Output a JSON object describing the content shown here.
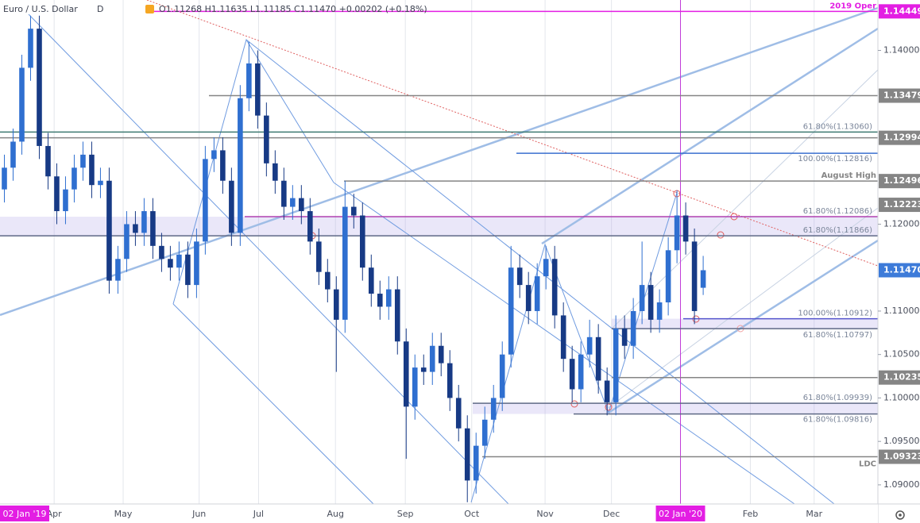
{
  "chart_data": {
    "type": "candlestick",
    "title": "Euro / U.S. Dollar",
    "interval": "D",
    "legend_ohlc": "O1.11268 H1.11635 L1.11185 C1.11470 +0.00202 (+0.18%)",
    "up_color": "#2f6fd0",
    "down_color": "#173a85",
    "open": [
      1.124,
      1.1265,
      1.1295,
      1.138,
      1.1425,
      1.129,
      1.1255,
      1.1215,
      1.124,
      1.1265,
      1.128,
      1.1245,
      1.125,
      1.1135,
      1.116,
      1.12,
      1.119,
      1.1215,
      1.1175,
      1.116,
      1.115,
      1.1165,
      1.113,
      1.118,
      1.1275,
      1.1285,
      1.125,
      1.119,
      1.1345,
      1.1385,
      1.1325,
      1.127,
      1.125,
      1.122,
      1.123,
      1.1215,
      1.118,
      1.1145,
      1.1125,
      1.109,
      1.122,
      1.121,
      1.115,
      1.112,
      1.1105,
      1.1125,
      1.1065,
      1.099,
      1.1035,
      1.103,
      1.106,
      1.104,
      1.1,
      1.0965,
      1.0905,
      1.0945,
      1.0975,
      1.1,
      1.105,
      1.115,
      1.113,
      1.11,
      1.114,
      1.116,
      1.1095,
      1.1045,
      1.101,
      1.105,
      1.107,
      1.102,
      1.0995,
      1.108,
      1.106,
      1.11,
      1.113,
      1.109,
      1.111,
      1.117,
      1.121,
      1.118,
      1.11268
    ],
    "high": [
      1.128,
      1.131,
      1.1395,
      1.144,
      1.144,
      1.1305,
      1.127,
      1.1255,
      1.128,
      1.1295,
      1.1295,
      1.1265,
      1.1265,
      1.1175,
      1.1215,
      1.1215,
      1.123,
      1.123,
      1.119,
      1.1175,
      1.118,
      1.118,
      1.1195,
      1.129,
      1.13,
      1.13,
      1.1265,
      1.136,
      1.141,
      1.14,
      1.134,
      1.1285,
      1.1265,
      1.1245,
      1.1245,
      1.123,
      1.1195,
      1.116,
      1.114,
      1.125,
      1.1235,
      1.1225,
      1.1165,
      1.1135,
      1.114,
      1.114,
      1.108,
      1.105,
      1.105,
      1.1075,
      1.1075,
      1.1055,
      1.1015,
      1.098,
      1.096,
      1.099,
      1.1015,
      1.1065,
      1.1175,
      1.1165,
      1.1145,
      1.1155,
      1.1175,
      1.1175,
      1.111,
      1.106,
      1.1065,
      1.109,
      1.1085,
      1.1035,
      1.1095,
      1.1095,
      1.1115,
      1.118,
      1.1145,
      1.1125,
      1.1185,
      1.1239,
      1.1225,
      1.1195,
      1.11635
    ],
    "low": [
      1.1225,
      1.125,
      1.128,
      1.1365,
      1.1275,
      1.124,
      1.12,
      1.12,
      1.1225,
      1.125,
      1.123,
      1.123,
      1.112,
      1.112,
      1.1145,
      1.1175,
      1.1175,
      1.116,
      1.1145,
      1.1135,
      1.1135,
      1.1115,
      1.1115,
      1.1165,
      1.126,
      1.1235,
      1.1175,
      1.1175,
      1.133,
      1.131,
      1.1255,
      1.1235,
      1.1205,
      1.1205,
      1.12,
      1.1165,
      1.113,
      1.111,
      1.103,
      1.1075,
      1.1195,
      1.1135,
      1.1105,
      1.109,
      1.109,
      1.105,
      1.093,
      1.0975,
      1.1015,
      1.1015,
      1.1025,
      1.0985,
      1.095,
      1.088,
      1.089,
      1.093,
      1.096,
      1.0985,
      1.1035,
      1.1115,
      1.1085,
      1.1085,
      1.1125,
      1.108,
      1.103,
      1.0995,
      1.0995,
      1.1035,
      1.1005,
      1.098,
      1.098,
      1.1045,
      1.1045,
      1.1085,
      1.1075,
      1.1075,
      1.1095,
      1.1155,
      1.1165,
      1.1085,
      1.11185
    ],
    "close": [
      1.1265,
      1.1295,
      1.138,
      1.1425,
      1.129,
      1.1255,
      1.1215,
      1.124,
      1.1265,
      1.128,
      1.1245,
      1.125,
      1.1135,
      1.116,
      1.12,
      1.119,
      1.1215,
      1.1175,
      1.116,
      1.115,
      1.1165,
      1.113,
      1.118,
      1.1275,
      1.1285,
      1.125,
      1.119,
      1.1345,
      1.1385,
      1.1325,
      1.127,
      1.125,
      1.122,
      1.123,
      1.1215,
      1.118,
      1.1145,
      1.1125,
      1.109,
      1.122,
      1.121,
      1.115,
      1.112,
      1.1105,
      1.1125,
      1.1065,
      1.099,
      1.1035,
      1.103,
      1.106,
      1.104,
      1.1,
      1.0965,
      1.0905,
      1.0945,
      1.0975,
      1.1,
      1.105,
      1.115,
      1.113,
      1.11,
      1.114,
      1.116,
      1.1095,
      1.1045,
      1.101,
      1.105,
      1.107,
      1.102,
      1.0995,
      1.108,
      1.106,
      1.11,
      1.113,
      1.109,
      1.111,
      1.117,
      1.121,
      1.118,
      1.11,
      1.1147
    ],
    "xlim": [
      -0.5,
      100
    ],
    "ylim": [
      1.0878,
      1.1458
    ],
    "xticks": [
      {
        "value": 5.7,
        "label": "Apr"
      },
      {
        "value": 13.6,
        "label": "May"
      },
      {
        "value": 22.3,
        "label": "Jun"
      },
      {
        "value": 29.1,
        "label": "Jul"
      },
      {
        "value": 37.9,
        "label": "Aug"
      },
      {
        "value": 45.9,
        "label": "Sep"
      },
      {
        "value": 53.5,
        "label": "Oct"
      },
      {
        "value": 61.9,
        "label": "Nov"
      },
      {
        "value": 69.5,
        "label": "Dec"
      },
      {
        "value": 85.4,
        "label": "Feb"
      },
      {
        "value": 92.7,
        "label": "Mar"
      }
    ],
    "highlight_dates": [
      {
        "value": 2.2,
        "label": "02 Jan '19"
      },
      {
        "value": 77.4,
        "label": "02 Jan '20"
      }
    ],
    "yticks": [
      {
        "value": 1.14,
        "label": "1.14000"
      },
      {
        "value": 1.12,
        "label": "1.12000"
      },
      {
        "value": 1.11,
        "label": "1.11000"
      },
      {
        "value": 1.105,
        "label": "1.10500"
      },
      {
        "value": 1.1,
        "label": "1.10000"
      },
      {
        "value": 1.095,
        "label": "1.09500"
      },
      {
        "value": 1.09,
        "label": "1.09000"
      }
    ],
    "grid": true,
    "price_labels": [
      {
        "value": 1.14449,
        "label": "1.14449",
        "color": "#e31ee3"
      },
      {
        "value": 1.13479,
        "label": "1.13479",
        "color": "#858585"
      },
      {
        "value": 1.12994,
        "label": "1.12994",
        "color": "#858585"
      },
      {
        "value": 1.12496,
        "label": "1.12496",
        "color": "#858585"
      },
      {
        "value": 1.12223,
        "label": "1.12223",
        "color": "#858585"
      },
      {
        "value": 1.1147,
        "label": "1.11470",
        "color": "#3d7bd9"
      },
      {
        "value": 1.10235,
        "label": "1.10235",
        "color": "#858585"
      },
      {
        "value": 1.09323,
        "label": "1.09323",
        "color": "#858585"
      }
    ],
    "annotations": [
      {
        "value": 1.14449,
        "label": "2019 Oper",
        "color": "#e31ee3"
      },
      {
        "value": 1.12496,
        "label": "August High",
        "color": "#858585"
      },
      {
        "value": 1.09323,
        "label": "LDC",
        "color": "#858585"
      }
    ],
    "levels": [
      {
        "value": 1.1306,
        "label": "61.80%(1.13060)",
        "color": "#3f7a72"
      },
      {
        "value": 1.12816,
        "label": "100.00%(1.12816)",
        "color": "#3a6fcf"
      },
      {
        "value": 1.12086,
        "label": "61.80%(1.12086)",
        "color": "#b040b0"
      },
      {
        "value": 1.11866,
        "label": "61.80%(1.11866)",
        "color": "#5f6a86"
      },
      {
        "value": 1.10912,
        "label": "100.00%(1.10912)",
        "color": "#5555cc"
      },
      {
        "value": 1.10797,
        "label": "61.80%(1.10797)",
        "color": "#5f6a86"
      },
      {
        "value": 1.09939,
        "label": "61.80%(1.09939)",
        "color": "#5f6a86"
      },
      {
        "value": 1.09816,
        "label": "61.80%(1.09816)",
        "color": "#5f6a86"
      }
    ]
  }
}
